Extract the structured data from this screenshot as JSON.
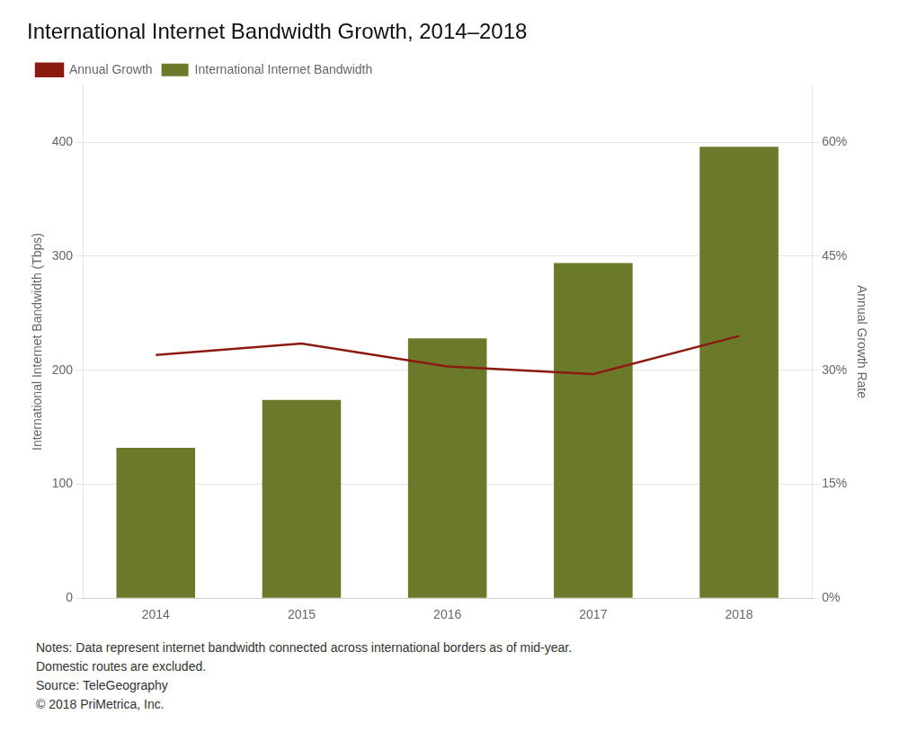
{
  "chart_data": {
    "type": "bar",
    "title": "International Internet Bandwidth Growth, 2014–2018",
    "categories": [
      "2014",
      "2015",
      "2016",
      "2017",
      "2018"
    ],
    "series": [
      {
        "name": "International Internet Bandwidth",
        "type": "bar",
        "color": "#6b7a2a",
        "values": [
          132,
          174,
          228,
          294,
          396
        ]
      },
      {
        "name": "Annual Growth",
        "type": "line",
        "color": "#8b1a10",
        "axis": "y2",
        "values": [
          0.32,
          0.335,
          0.305,
          0.295,
          0.345
        ]
      }
    ],
    "ylabel": "International Internet Bandwidth (Tbps)",
    "y2label": "Annual Growth Rate",
    "ylim": [
      0,
      450
    ],
    "yticks": [
      0,
      100,
      200,
      300,
      400
    ],
    "y2lim": [
      0,
      0.675
    ],
    "y2ticks": [
      {
        "value": 0.0,
        "label": "0%"
      },
      {
        "value": 0.15,
        "label": "15%"
      },
      {
        "value": 0.3,
        "label": "30%"
      },
      {
        "value": 0.45,
        "label": "45%"
      },
      {
        "value": 0.6,
        "label": "60%"
      }
    ],
    "grid": true,
    "legend": "upper left",
    "annotations": [
      "Notes: Data represent internet bandwidth connected across international borders as of mid-year.",
      "Domestic routes are excluded.",
      "Source: TeleGeography",
      "© 2018 PriMetrica, Inc."
    ]
  }
}
